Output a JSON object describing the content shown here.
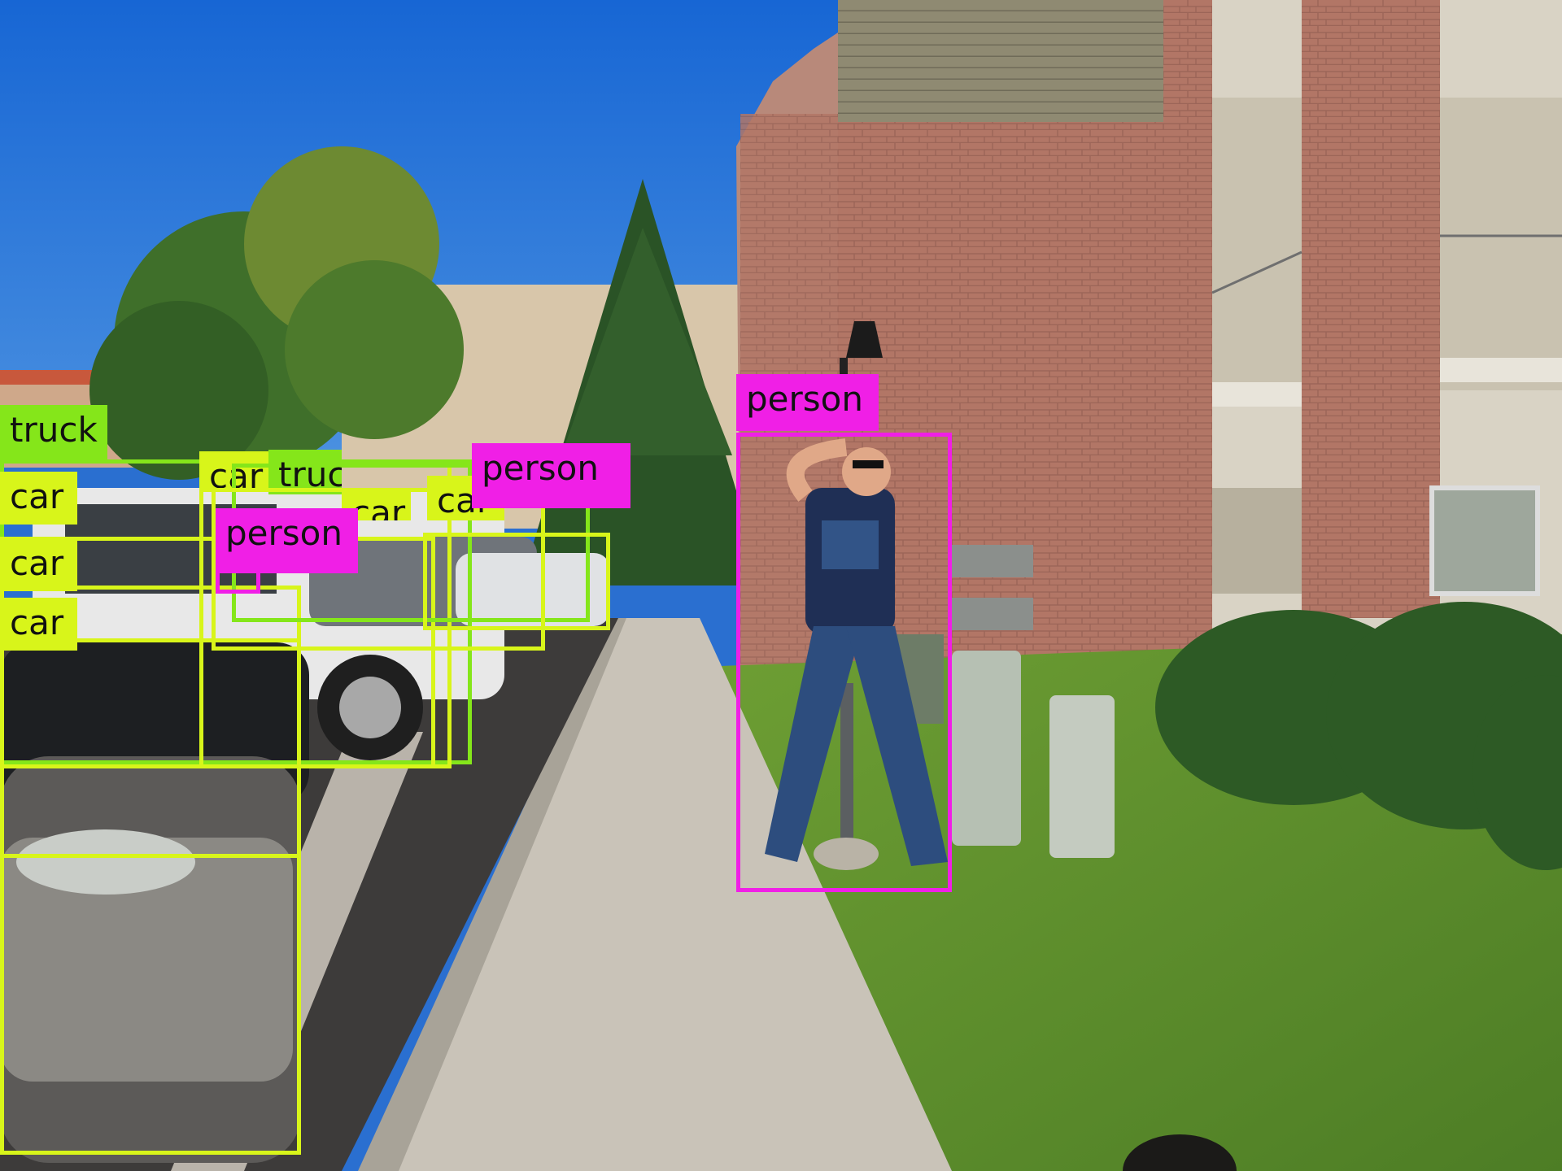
{
  "scene": {
    "description_colors": {
      "sky": "#1f74d6",
      "brick": "#b5766a",
      "siding": "#9a9478",
      "grass": "#5f8f2e",
      "sidewalk": "#c9c3b8"
    }
  },
  "detections": [
    {
      "label": "truck",
      "color": "#85e61a"
    },
    {
      "label": "car",
      "color": "#d8f51a"
    },
    {
      "label": "car",
      "color": "#d8f51a"
    },
    {
      "label": "car",
      "color": "#d8f51a"
    },
    {
      "label": "car",
      "color": "#d8f51a"
    },
    {
      "label": "truck",
      "color": "#85e61a"
    },
    {
      "label": "car",
      "color": "#d8f51a"
    },
    {
      "label": "car",
      "color": "#d8f51a"
    },
    {
      "label": "person",
      "color": "#f01fe6"
    },
    {
      "label": "person",
      "color": "#f01fe6"
    },
    {
      "label": "person",
      "color": "#f01fe6"
    }
  ]
}
